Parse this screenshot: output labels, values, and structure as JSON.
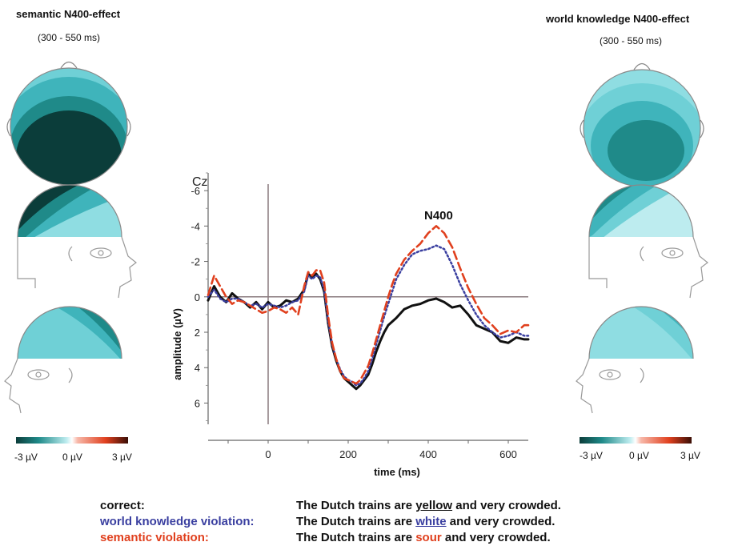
{
  "left_panel": {
    "title": "semantic N400-effect",
    "window": "(300 - 550 ms)",
    "scale": {
      "min_label": "-3 µV",
      "mid_label": "0 µV",
      "max_label": "3 µV"
    }
  },
  "right_panel": {
    "title": "world knowledge N400-effect",
    "window": "(300 - 550 ms)",
    "scale": {
      "min_label": "-3 µV",
      "mid_label": "0 µV",
      "max_label": "3 µV"
    }
  },
  "colors": {
    "correct": "#111111",
    "world_knowledge": "#3a3fa0",
    "semantic": "#e0401e",
    "topo_dark": "#0b3d3a",
    "topo_mid": "#1f8a89",
    "topo_light": "#a9e3e8"
  },
  "legend": {
    "correct_label": "correct:",
    "world_label": "world knowledge violation:",
    "semantic_label": "semantic violation:",
    "sentence_prefix": "The Dutch trains are",
    "sentence_suffix": "and very crowded.",
    "word_correct": "yellow",
    "word_world": "white",
    "word_semantic": "sour"
  },
  "chart_data": {
    "type": "line",
    "electrode": "Cz",
    "annotation": "N400",
    "xlabel": "time (ms)",
    "ylabel": "amplitude (µV)",
    "xlim": [
      -150,
      650
    ],
    "ylim": [
      -7,
      7.2
    ],
    "y_inverted": true,
    "xticks": [
      0,
      200,
      400,
      600
    ],
    "yticks": [
      -6,
      -4,
      -2,
      0,
      2,
      4,
      6
    ],
    "series": [
      {
        "name": "correct",
        "color": "#111111",
        "style": "solid",
        "x": [
          -150,
          -135,
          -120,
          -105,
          -90,
          -75,
          -60,
          -45,
          -30,
          -15,
          0,
          15,
          30,
          45,
          60,
          75,
          90,
          100,
          110,
          120,
          130,
          140,
          150,
          160,
          170,
          180,
          190,
          200,
          210,
          220,
          230,
          240,
          250,
          260,
          270,
          280,
          290,
          300,
          310,
          320,
          340,
          360,
          380,
          400,
          420,
          440,
          460,
          480,
          500,
          520,
          540,
          560,
          580,
          600,
          620,
          640,
          650
        ],
        "y": [
          0.2,
          -0.6,
          0.0,
          0.3,
          -0.2,
          0.1,
          0.3,
          0.6,
          0.3,
          0.7,
          0.3,
          0.6,
          0.5,
          0.2,
          0.3,
          0.1,
          -0.4,
          -1.3,
          -1.1,
          -1.3,
          -1.0,
          -0.3,
          1.5,
          2.8,
          3.6,
          4.2,
          4.6,
          4.8,
          5.0,
          5.2,
          5.0,
          4.7,
          4.4,
          3.8,
          3.1,
          2.5,
          2.0,
          1.6,
          1.4,
          1.2,
          0.7,
          0.5,
          0.4,
          0.2,
          0.1,
          0.3,
          0.6,
          0.5,
          1.0,
          1.6,
          1.8,
          2.0,
          2.5,
          2.6,
          2.3,
          2.4,
          2.4
        ]
      },
      {
        "name": "world knowledge violation",
        "color": "#3a3fa0",
        "style": "dotted",
        "x": [
          -150,
          -135,
          -120,
          -105,
          -90,
          -75,
          -60,
          -45,
          -30,
          -15,
          0,
          15,
          30,
          45,
          60,
          75,
          90,
          100,
          110,
          120,
          130,
          140,
          150,
          160,
          170,
          180,
          190,
          200,
          210,
          220,
          230,
          240,
          250,
          260,
          270,
          280,
          290,
          300,
          310,
          320,
          340,
          360,
          380,
          400,
          420,
          440,
          460,
          480,
          500,
          520,
          540,
          560,
          580,
          600,
          620,
          640,
          650
        ],
        "y": [
          0.0,
          -0.4,
          0.1,
          0.3,
          0.1,
          0.1,
          0.3,
          0.5,
          0.4,
          0.6,
          0.4,
          0.5,
          0.6,
          0.5,
          0.3,
          0.2,
          -0.3,
          -1.2,
          -1.0,
          -1.2,
          -1.1,
          -0.4,
          1.4,
          2.7,
          3.5,
          4.1,
          4.5,
          4.7,
          4.8,
          5.0,
          4.9,
          4.6,
          4.2,
          3.5,
          2.7,
          1.9,
          1.1,
          0.4,
          -0.3,
          -1.0,
          -1.8,
          -2.4,
          -2.6,
          -2.7,
          -2.9,
          -2.7,
          -1.8,
          -0.7,
          0.2,
          1.0,
          1.6,
          2.0,
          2.3,
          2.2,
          2.0,
          2.2,
          2.2
        ]
      },
      {
        "name": "semantic violation",
        "color": "#e0401e",
        "style": "dashed",
        "x": [
          -150,
          -135,
          -120,
          -105,
          -90,
          -75,
          -60,
          -45,
          -30,
          -15,
          0,
          15,
          30,
          45,
          60,
          75,
          90,
          100,
          110,
          120,
          130,
          140,
          150,
          160,
          170,
          180,
          190,
          200,
          210,
          220,
          230,
          240,
          250,
          260,
          270,
          280,
          290,
          300,
          310,
          320,
          340,
          360,
          380,
          400,
          420,
          440,
          460,
          480,
          500,
          520,
          540,
          560,
          580,
          600,
          620,
          640,
          650
        ],
        "y": [
          -0.1,
          -1.2,
          -0.6,
          0.0,
          0.4,
          0.2,
          0.3,
          0.5,
          0.7,
          0.9,
          0.8,
          0.6,
          0.7,
          0.9,
          0.6,
          1.0,
          -0.6,
          -1.4,
          -1.2,
          -1.5,
          -1.5,
          -0.8,
          1.1,
          2.6,
          3.5,
          4.2,
          4.6,
          4.7,
          4.8,
          4.9,
          4.7,
          4.3,
          3.9,
          3.2,
          2.4,
          1.6,
          0.8,
          0.0,
          -0.7,
          -1.3,
          -2.1,
          -2.6,
          -3.0,
          -3.6,
          -4.0,
          -3.6,
          -2.8,
          -1.6,
          -0.5,
          0.4,
          1.2,
          1.6,
          2.1,
          1.9,
          2.0,
          1.6,
          1.6
        ]
      }
    ]
  }
}
